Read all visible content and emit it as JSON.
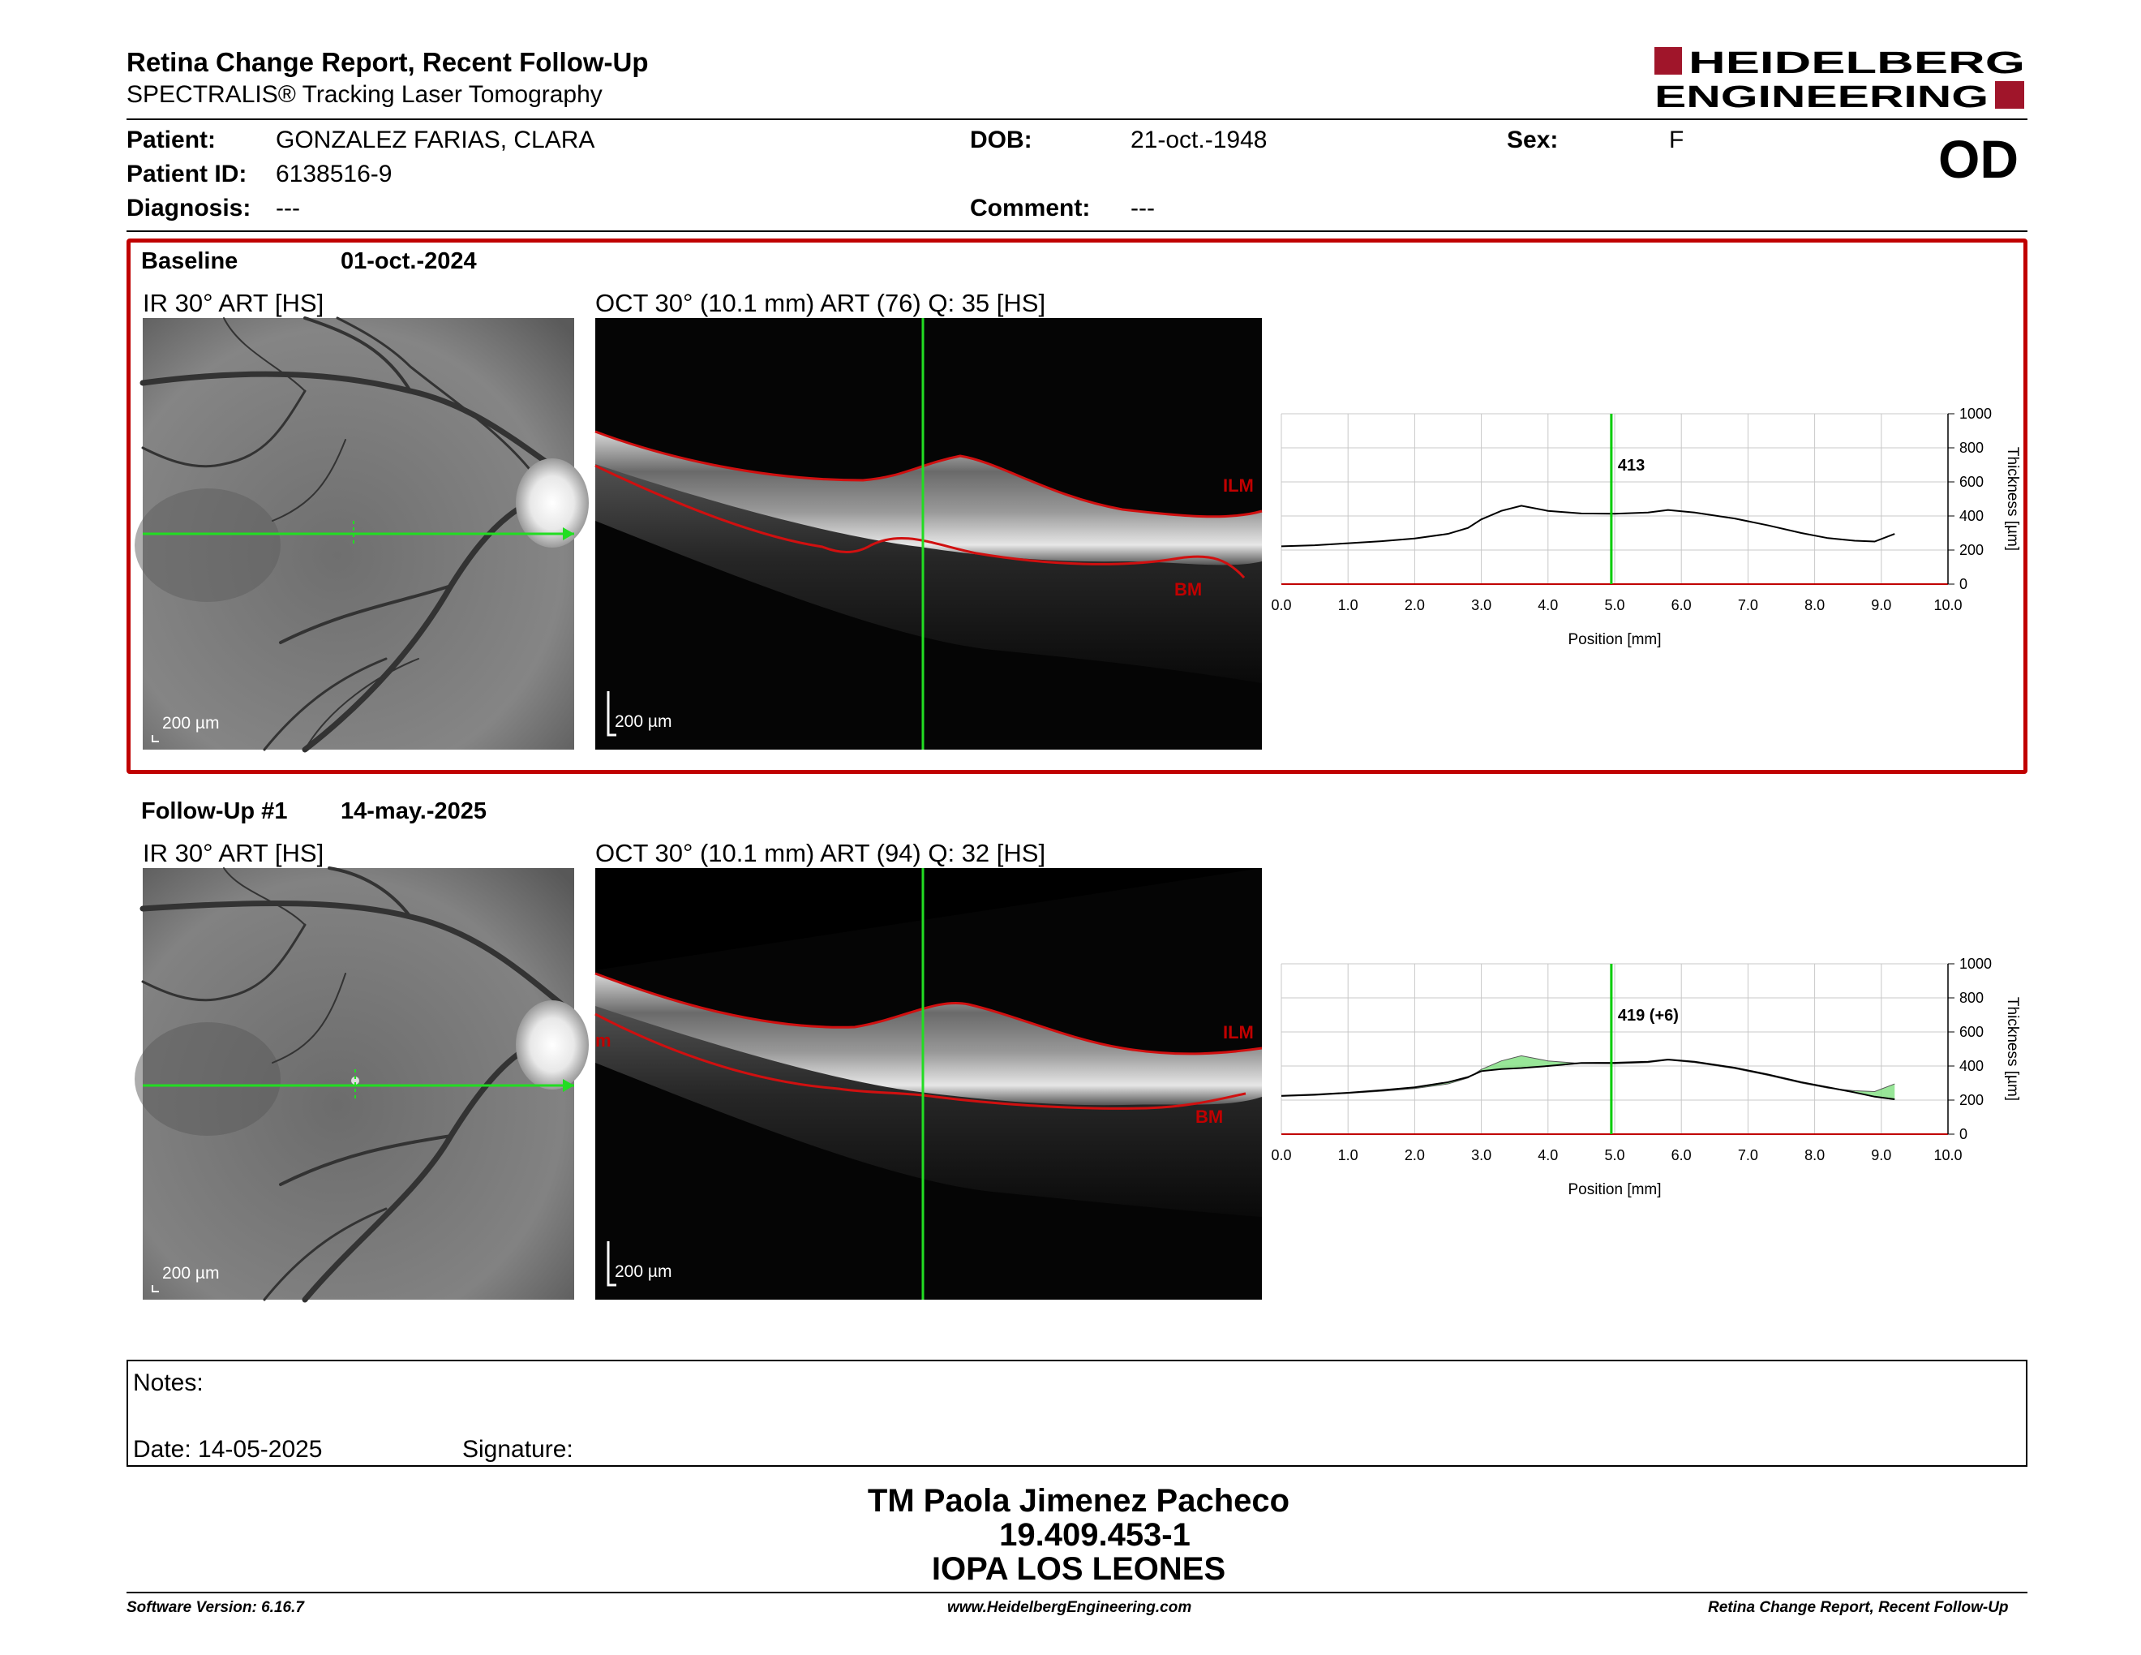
{
  "header": {
    "title": "Retina Change Report, Recent Follow-Up",
    "subtitle": "SPECTRALIS® Tracking Laser Tomography",
    "logo_line1": "HEIDELBERG",
    "logo_line2": "ENGINEERING",
    "eye": "OD"
  },
  "patient": {
    "patient_label": "Patient:",
    "patient_value": "GONZALEZ FARIAS, CLARA",
    "id_label": "Patient ID:",
    "id_value": "6138516-9",
    "diagnosis_label": "Diagnosis:",
    "diagnosis_value": "---",
    "dob_label": "DOB:",
    "dob_value": "21-oct.-1948",
    "comment_label": "Comment:",
    "comment_value": "---",
    "sex_label": "Sex:",
    "sex_value": "F"
  },
  "baseline": {
    "label": "Baseline",
    "date": "01-oct.-2024",
    "ir_title": "IR 30° ART [HS]",
    "oct_title": "OCT 30° (10.1 mm) ART (76) Q: 35 [HS]",
    "ir_scale": "200 µm",
    "oct_scale": "200 µm",
    "ilm": "ILM",
    "bm": "BM"
  },
  "followup": {
    "label": "Follow-Up #1",
    "date": "14-may.-2025",
    "ir_title": "IR 30° ART [HS]",
    "oct_title": "OCT 30° (10.1 mm) ART (94) Q: 32 [HS]",
    "ir_scale": "200 µm",
    "oct_scale": "200 µm",
    "ilm": "ILM",
    "bm": "BM",
    "ilm_edge": "m"
  },
  "chart_data": [
    {
      "type": "line",
      "xlabel": "Position [mm]",
      "ylabel": "Thickness [µm]",
      "xlim": [
        0,
        10
      ],
      "ylim": [
        0,
        1000
      ],
      "x_ticks": [
        "0.0",
        "1.0",
        "2.0",
        "3.0",
        "4.0",
        "5.0",
        "6.0",
        "7.0",
        "8.0",
        "9.0",
        "10.0"
      ],
      "y_ticks": [
        "0",
        "200",
        "400",
        "600",
        "800",
        "1000"
      ],
      "grid": true,
      "cursor_x": 4.95,
      "cursor_label": "413",
      "series": [
        {
          "x": [
            0.0,
            0.5,
            1.0,
            1.5,
            2.0,
            2.5,
            2.8,
            3.0,
            3.3,
            3.6,
            4.0,
            4.5,
            5.0,
            5.5,
            5.8,
            6.2,
            6.8,
            7.3,
            7.8,
            8.2,
            8.6,
            8.9,
            9.2
          ],
          "y": [
            222,
            228,
            240,
            252,
            268,
            295,
            330,
            380,
            430,
            460,
            430,
            415,
            413,
            420,
            435,
            420,
            385,
            345,
            300,
            270,
            255,
            250,
            295
          ]
        }
      ]
    },
    {
      "type": "area",
      "xlabel": "Position [mm]",
      "ylabel": "Thickness [µm]",
      "xlim": [
        0,
        10
      ],
      "ylim": [
        0,
        1000
      ],
      "x_ticks": [
        "0.0",
        "1.0",
        "2.0",
        "3.0",
        "4.0",
        "5.0",
        "6.0",
        "7.0",
        "8.0",
        "9.0",
        "10.0"
      ],
      "y_ticks": [
        "0",
        "200",
        "400",
        "600",
        "800",
        "1000"
      ],
      "grid": true,
      "cursor_x": 4.95,
      "cursor_label": "419 (+6)",
      "series": [
        {
          "x": [
            0.0,
            0.5,
            1.0,
            1.5,
            2.0,
            2.5,
            2.8,
            3.0,
            3.3,
            3.6,
            4.0,
            4.5,
            5.0,
            5.5,
            5.8,
            6.2,
            6.8,
            7.3,
            7.8,
            8.2,
            8.6,
            8.9,
            9.2
          ],
          "y": [
            225,
            232,
            243,
            258,
            275,
            305,
            335,
            370,
            382,
            388,
            400,
            418,
            419,
            425,
            438,
            425,
            390,
            350,
            305,
            275,
            245,
            220,
            205
          ]
        }
      ]
    }
  ],
  "notes": {
    "notes_label": "Notes:",
    "date_label": "Date: 14-05-2025",
    "signature_label": "Signature:"
  },
  "signer": {
    "name": "TM Paola Jimenez Pacheco",
    "rut": "19.409.453-1",
    "institution": "IOPA LOS LEONES"
  },
  "footer": {
    "software": "Software Version: 6.16.7",
    "website": "www.HeidelbergEngineering.com",
    "report": "Retina Change Report, Recent Follow-Up"
  },
  "colors": {
    "accent_red": "#c00000",
    "cursor_green": "#00cc00",
    "segmentation_red": "#d01010",
    "change_fill": "#7ee07e"
  }
}
